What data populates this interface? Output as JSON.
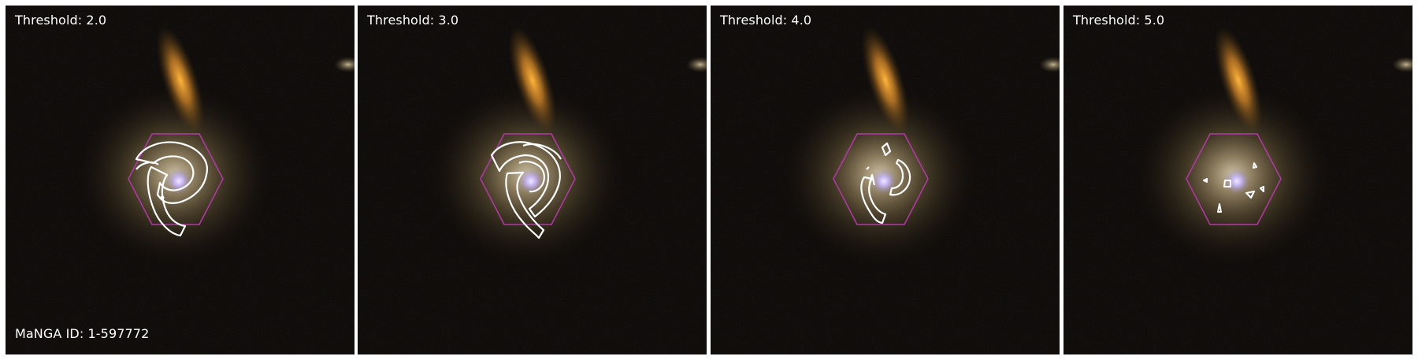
{
  "figure": {
    "panels": [
      {
        "threshold_text": "Threshold: 2.0",
        "contour_id": "c2"
      },
      {
        "threshold_text": "Threshold: 3.0",
        "contour_id": "c3"
      },
      {
        "threshold_text": "Threshold: 4.0",
        "contour_id": "c4"
      },
      {
        "threshold_text": "Threshold: 5.0",
        "contour_id": "c5"
      }
    ],
    "galaxy_id_text": "MaNGA ID: 1-597772"
  },
  "colors": {
    "background": "#050403",
    "hexagon": "#b23aa6",
    "contour": "#ffffff",
    "galaxy_halo": "#6e5d3c",
    "companion": "#e08a2a",
    "nucleus": "#c9b8ff"
  },
  "icons": [
    "hexagon-ifu-footprint",
    "galaxy-image",
    "contour-lines"
  ]
}
